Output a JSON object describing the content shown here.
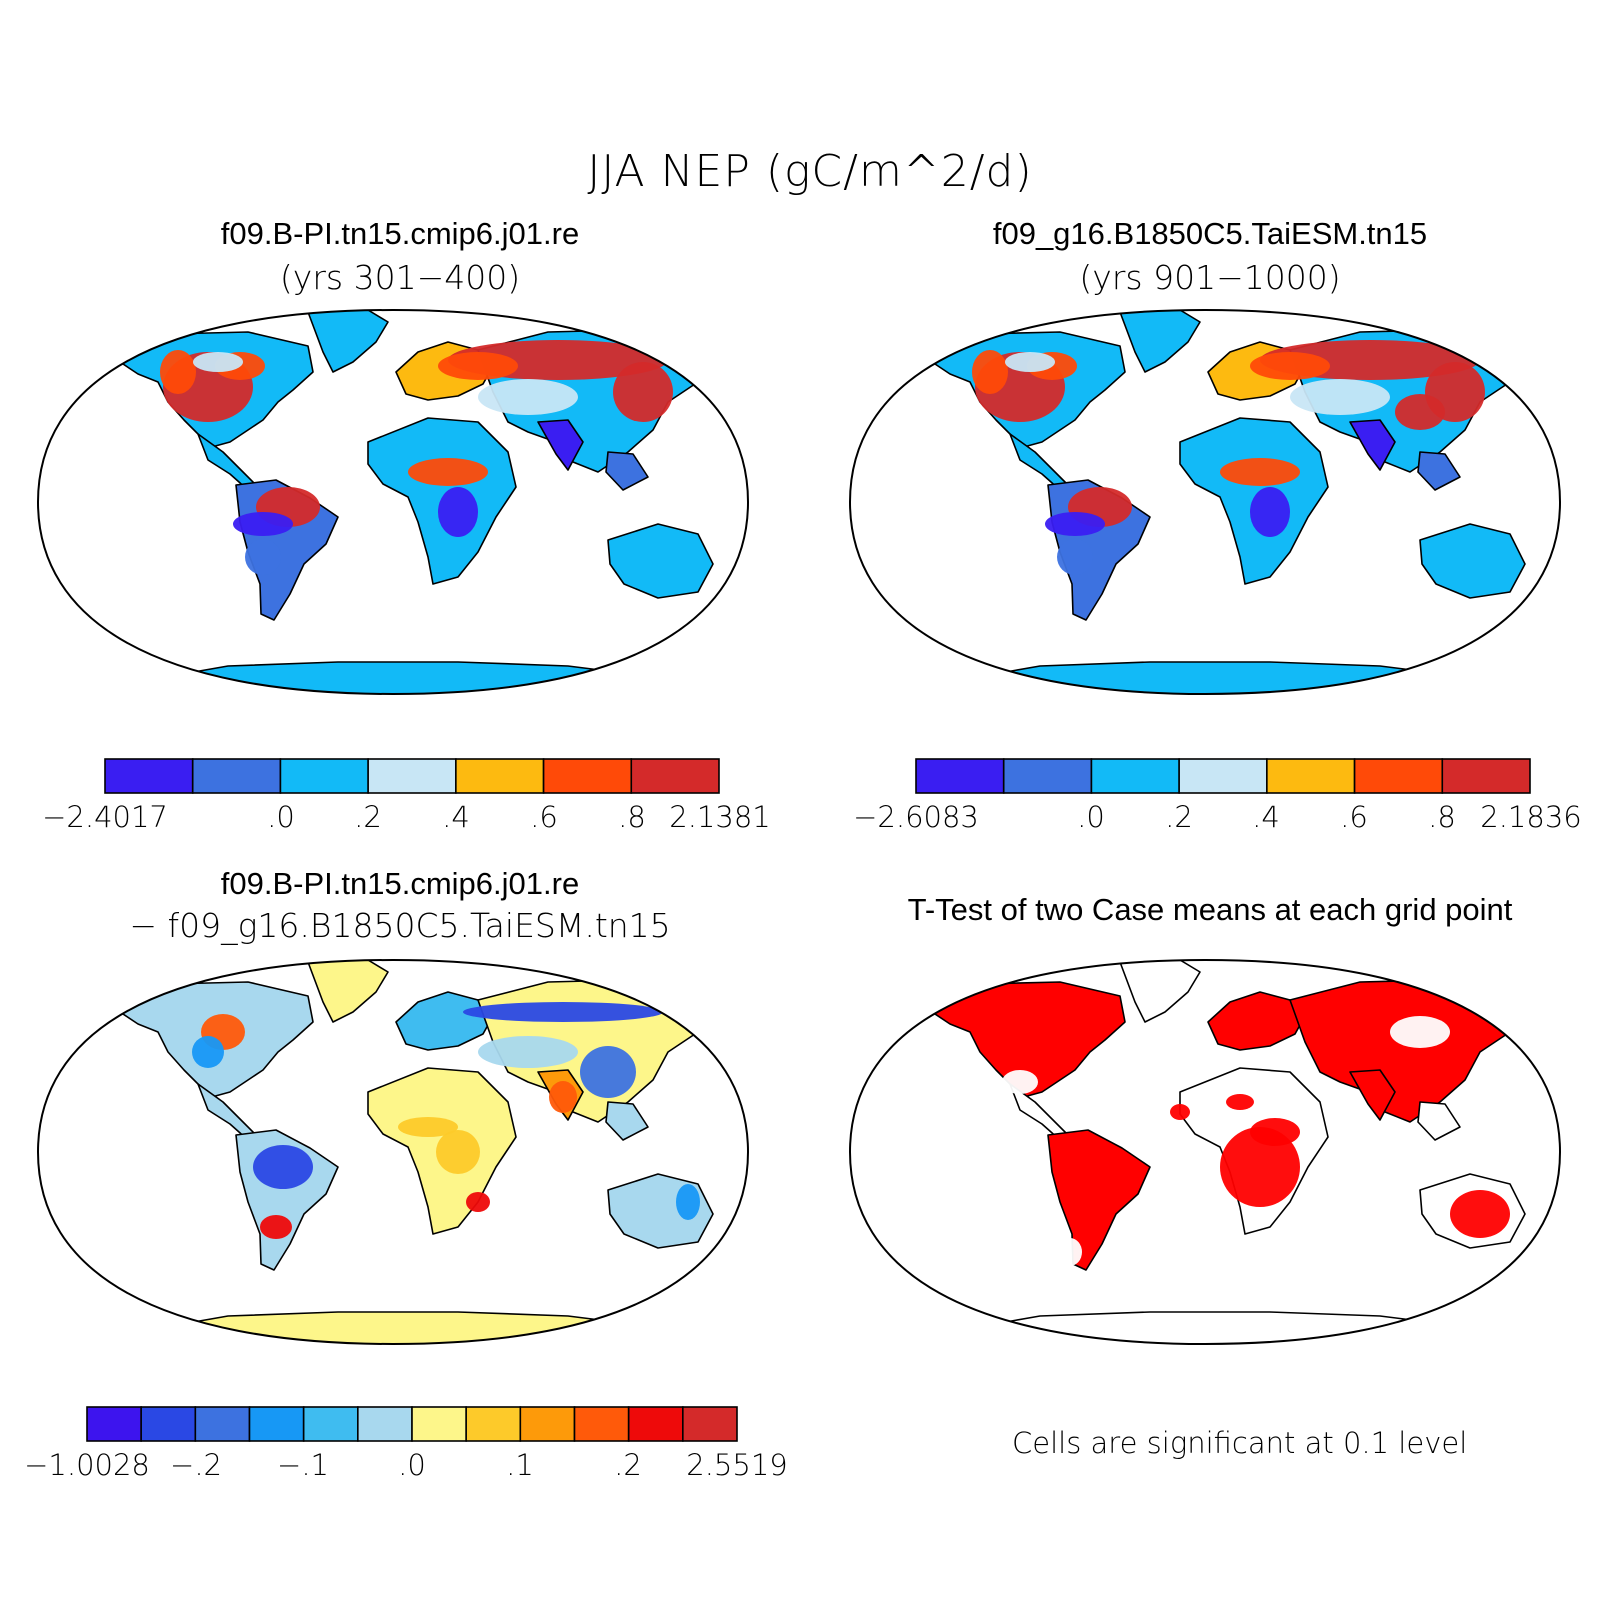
{
  "title": "JJA NEP (gC/m^2/d)",
  "panels": {
    "p1": {
      "title": "f09.B-PI.tn15.cmip6.j01.re",
      "subtitle": "(yrs 301−400)"
    },
    "p2": {
      "title": "f09_g16.B1850C5.TaiESM.tn15",
      "subtitle": "(yrs 901−1000)"
    },
    "p3": {
      "title": "f09.B-PI.tn15.cmip6.j01.re",
      "subtitle": "−  f09_g16.B1850C5.TaiESM.tn15"
    },
    "p4": {
      "title": "T-Test of two Case means at each grid point",
      "note": "Cells are significant at 0.1 level",
      "significant_color": "#ff0000"
    }
  },
  "colorbars": {
    "cb1": {
      "colors": [
        "#3a1ef2",
        "#3d72e0",
        "#12baf7",
        "#c8e6f5",
        "#fdba10",
        "#ff4a08",
        "#d42a2a"
      ],
      "labels": [
        "−2.4017",
        ".0",
        ".2",
        ".4",
        ".6",
        ".8",
        "2.1381"
      ]
    },
    "cb2": {
      "colors": [
        "#3a1ef2",
        "#3d72e0",
        "#12baf7",
        "#c8e6f5",
        "#fdba10",
        "#ff4a08",
        "#d42a2a"
      ],
      "labels": [
        "−2.6083",
        ".0",
        ".2",
        ".4",
        ".6",
        ".8",
        "2.1836"
      ]
    },
    "cb3": {
      "colors": [
        "#3d14ee",
        "#2a48e4",
        "#3d72e0",
        "#1798f5",
        "#3fbcf0",
        "#a8d8ee",
        "#fdf68a",
        "#fdca2a",
        "#fd9a0a",
        "#ff5a0a",
        "#ee0a0a",
        "#d42a2a"
      ],
      "labels": [
        "−1.0028",
        "−.2",
        "−.1",
        ".0",
        ".1",
        ".2",
        "2.5519"
      ]
    }
  }
}
